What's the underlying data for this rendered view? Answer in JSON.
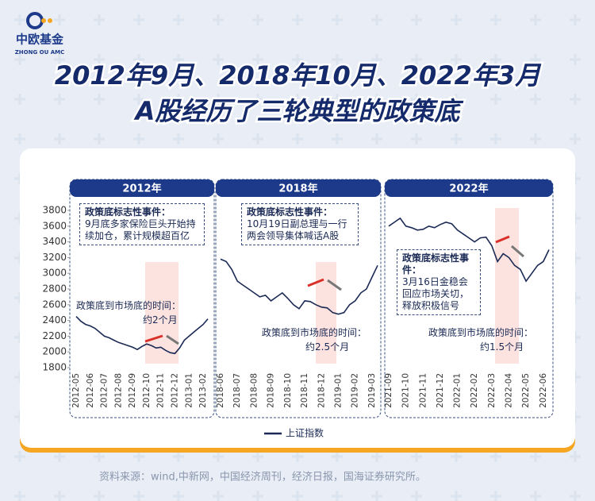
{
  "header": {
    "brand": "中欧基金",
    "brand_en": "ZHONG OU AMC",
    "title_lines": [
      "2012年9月、2018年10月、2022年3月",
      "A股经历了三轮典型的政策底"
    ]
  },
  "chart_data": [
    {
      "type": "line",
      "title": "2012年",
      "categories": [
        "2012-05",
        null,
        null,
        "2012-06",
        null,
        null,
        "2012-07",
        null,
        null,
        "2012-08",
        null,
        null,
        "2012-09",
        null,
        null,
        "2012-10",
        null,
        null,
        "2012-11",
        null,
        null,
        "2012-12",
        null,
        null,
        "2013-01",
        null,
        null,
        "2013-02",
        null
      ],
      "series": [
        {
          "name": "上证指数",
          "color": "#1b2a55",
          "values": [
            2450,
            2390,
            2350,
            2330,
            2300,
            2250,
            2200,
            2180,
            2150,
            2120,
            2100,
            2080,
            2060,
            2030,
            2070,
            2100,
            2080,
            2050,
            2060,
            2020,
            1990,
            1980,
            2050,
            2150,
            2200,
            2250,
            2300,
            2350,
            2420
          ]
        }
      ],
      "ylim": [
        1800,
        3800
      ],
      "yticks": [
        1800,
        2000,
        2200,
        2400,
        2600,
        2800,
        3000,
        3200,
        3400,
        3600,
        3800
      ],
      "annotations": {
        "event_label": "政策底标志性事件：",
        "event": "9月底多家保险巨头开始持续加仓，累计规模超百亿",
        "lag_label": "政策底到市场底的时间：",
        "lag": "约2个月"
      }
    },
    {
      "type": "line",
      "title": "2018年",
      "categories": [
        "2018-06",
        null,
        null,
        "2018-07",
        null,
        null,
        "2018-08",
        null,
        null,
        "2018-09",
        null,
        null,
        "2018-10",
        null,
        null,
        "2018-11",
        null,
        null,
        "2018-12",
        null,
        null,
        "2019-01",
        null,
        null,
        "2019-02",
        null,
        null,
        "2019-03",
        null
      ],
      "series": [
        {
          "color": "#1b2a55",
          "values": [
            3180,
            3150,
            3050,
            2900,
            2850,
            2800,
            2750,
            2700,
            2720,
            2650,
            2700,
            2750,
            2680,
            2600,
            2550,
            2650,
            2640,
            2600,
            2570,
            2560,
            2500,
            2480,
            2500,
            2600,
            2650,
            2750,
            2800,
            2950,
            3100
          ]
        }
      ],
      "ylim": [
        1800,
        3800
      ],
      "annotations": {
        "event_label": "政策底标志性事件：",
        "event": "10月19日副总理与一行两会领导集体喊话A股",
        "lag_label": "政策底到市场底的时间：",
        "lag": "约2.5个月"
      }
    },
    {
      "type": "line",
      "title": "2022年",
      "categories": [
        "2021-09",
        null,
        null,
        "2021-10",
        null,
        null,
        "2021-11",
        null,
        null,
        "2021-12",
        null,
        null,
        "2022-01",
        null,
        null,
        "2022-02",
        null,
        null,
        "2022-03",
        null,
        null,
        "2022-04",
        null,
        null,
        "2022-05",
        null,
        null,
        "2022-06",
        null
      ],
      "series": [
        {
          "color": "#1b2a55",
          "values": [
            3600,
            3650,
            3700,
            3600,
            3580,
            3550,
            3560,
            3600,
            3580,
            3620,
            3650,
            3630,
            3550,
            3500,
            3450,
            3400,
            3450,
            3460,
            3350,
            3150,
            3250,
            3200,
            3100,
            3050,
            2900,
            3000,
            3100,
            3150,
            3300
          ]
        }
      ],
      "ylim": [
        1800,
        3800
      ],
      "annotations": {
        "event_label": "政策底标志性事件：",
        "event": "3月16日金稳会回应市场关切，释放积极信号",
        "lag_label": "政策底到市场底的时间：",
        "lag": "约1.5个月"
      }
    }
  ],
  "source": "资料来源：wind,中新网，中国经济周刊，经济日报，国海证券研究所。"
}
